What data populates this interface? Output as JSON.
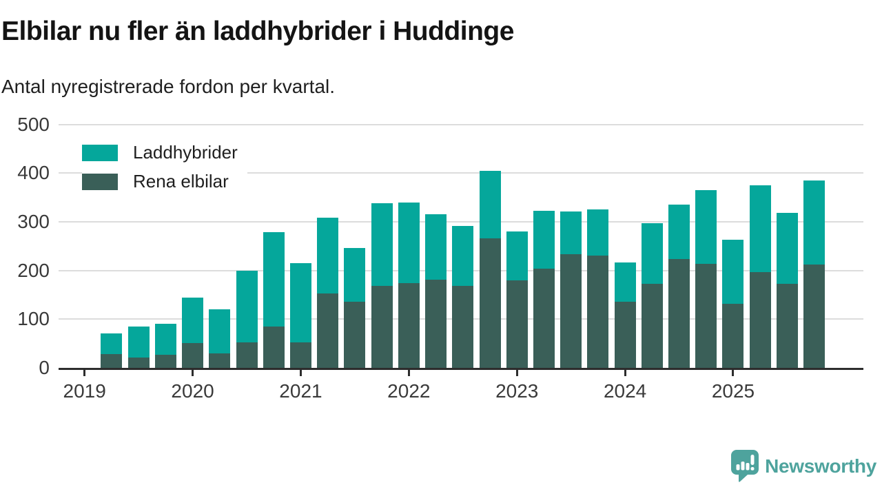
{
  "title": "Elbilar nu fler än laddhybrider i Huddinge",
  "subtitle": "Antal nyregistrerade fordon per kvartal.",
  "colors": {
    "laddhybrider": "#05a79b",
    "rena_elbilar": "#3a5f58",
    "gridline": "#dcdcdc",
    "axis": "#2d2d2d",
    "logo_teal": "#4ea39d"
  },
  "legend": [
    {
      "label": "Laddhybrider",
      "color": "#05a79b"
    },
    {
      "label": "Rena elbilar",
      "color": "#3a5f58"
    }
  ],
  "logo": {
    "text": "Newsworthy"
  },
  "chart_data": {
    "type": "bar",
    "stacked": true,
    "title": "Elbilar nu fler än laddhybrider i Huddinge",
    "subtitle": "Antal nyregistrerade fordon per kvartal.",
    "xlabel": "",
    "ylabel": "",
    "ylim": [
      0,
      500
    ],
    "yticks": [
      0,
      100,
      200,
      300,
      400,
      500
    ],
    "grid": true,
    "legend_position": "top-left",
    "x": [
      "2019-Q2",
      "2019-Q3",
      "2019-Q4",
      "2020-Q1",
      "2020-Q2",
      "2020-Q3",
      "2020-Q4",
      "2021-Q1",
      "2021-Q2",
      "2021-Q3",
      "2021-Q4",
      "2022-Q1",
      "2022-Q2",
      "2022-Q3",
      "2022-Q4",
      "2023-Q1",
      "2023-Q2",
      "2023-Q3",
      "2023-Q4",
      "2024-Q1",
      "2024-Q2",
      "2024-Q3",
      "2024-Q4",
      "2025-Q1",
      "2025-Q2",
      "2025-Q3",
      "2025-Q4"
    ],
    "xticks": [
      "2019",
      "2020",
      "2021",
      "2022",
      "2023",
      "2024",
      "2025"
    ],
    "series": [
      {
        "name": "Rena elbilar",
        "color": "#3a5f58",
        "values": [
          28,
          21,
          27,
          51,
          30,
          53,
          85,
          52,
          153,
          136,
          169,
          174,
          181,
          169,
          266,
          180,
          203,
          233,
          230,
          136,
          172,
          224,
          214,
          132,
          197,
          173,
          212
        ]
      },
      {
        "name": "Laddhybrider",
        "color": "#05a79b",
        "values": [
          42,
          63,
          63,
          94,
          90,
          147,
          194,
          163,
          156,
          110,
          170,
          165,
          135,
          123,
          139,
          100,
          119,
          87,
          95,
          81,
          125,
          112,
          151,
          132,
          178,
          146,
          172
        ]
      }
    ],
    "totals": [
      70,
      84,
      90,
      145,
      120,
      200,
      279,
      215,
      309,
      246,
      339,
      339,
      316,
      292,
      405,
      280,
      322,
      320,
      325,
      217,
      297,
      336,
      365,
      264,
      375,
      319,
      384
    ]
  }
}
